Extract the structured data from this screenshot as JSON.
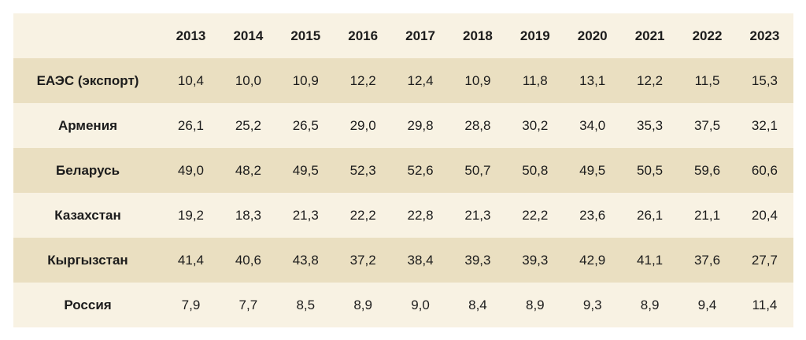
{
  "chart_data": {
    "type": "table",
    "columns": [
      "2013",
      "2014",
      "2015",
      "2016",
      "2017",
      "2018",
      "2019",
      "2020",
      "2021",
      "2022",
      "2023"
    ],
    "rows": [
      {
        "label": "ЕАЭС (экспорт)",
        "values": [
          "10,4",
          "10,0",
          "10,9",
          "12,2",
          "12,4",
          "10,9",
          "11,8",
          "13,1",
          "12,2",
          "11,5",
          "15,3"
        ]
      },
      {
        "label": "Армения",
        "values": [
          "26,1",
          "25,2",
          "26,5",
          "29,0",
          "29,8",
          "28,8",
          "30,2",
          "34,0",
          "35,3",
          "37,5",
          "32,1"
        ]
      },
      {
        "label": "Беларусь",
        "values": [
          "49,0",
          "48,2",
          "49,5",
          "52,3",
          "52,6",
          "50,7",
          "50,8",
          "49,5",
          "50,5",
          "59,6",
          "60,6"
        ]
      },
      {
        "label": "Казахстан",
        "values": [
          "19,2",
          "18,3",
          "21,3",
          "22,2",
          "22,8",
          "21,3",
          "22,2",
          "23,6",
          "26,1",
          "21,1",
          "20,4"
        ]
      },
      {
        "label": "Кыргызстан",
        "values": [
          "41,4",
          "40,6",
          "43,8",
          "37,2",
          "38,4",
          "39,3",
          "39,3",
          "42,9",
          "41,1",
          "37,6",
          "27,7"
        ]
      },
      {
        "label": "Россия",
        "values": [
          "7,9",
          "7,7",
          "8,5",
          "8,9",
          "9,0",
          "8,4",
          "8,9",
          "9,3",
          "8,9",
          "9,4",
          "11,4"
        ]
      }
    ]
  },
  "colors": {
    "row_light": "#f8f2e3",
    "row_dark": "#eadfc1",
    "text": "#1c1c1c"
  }
}
